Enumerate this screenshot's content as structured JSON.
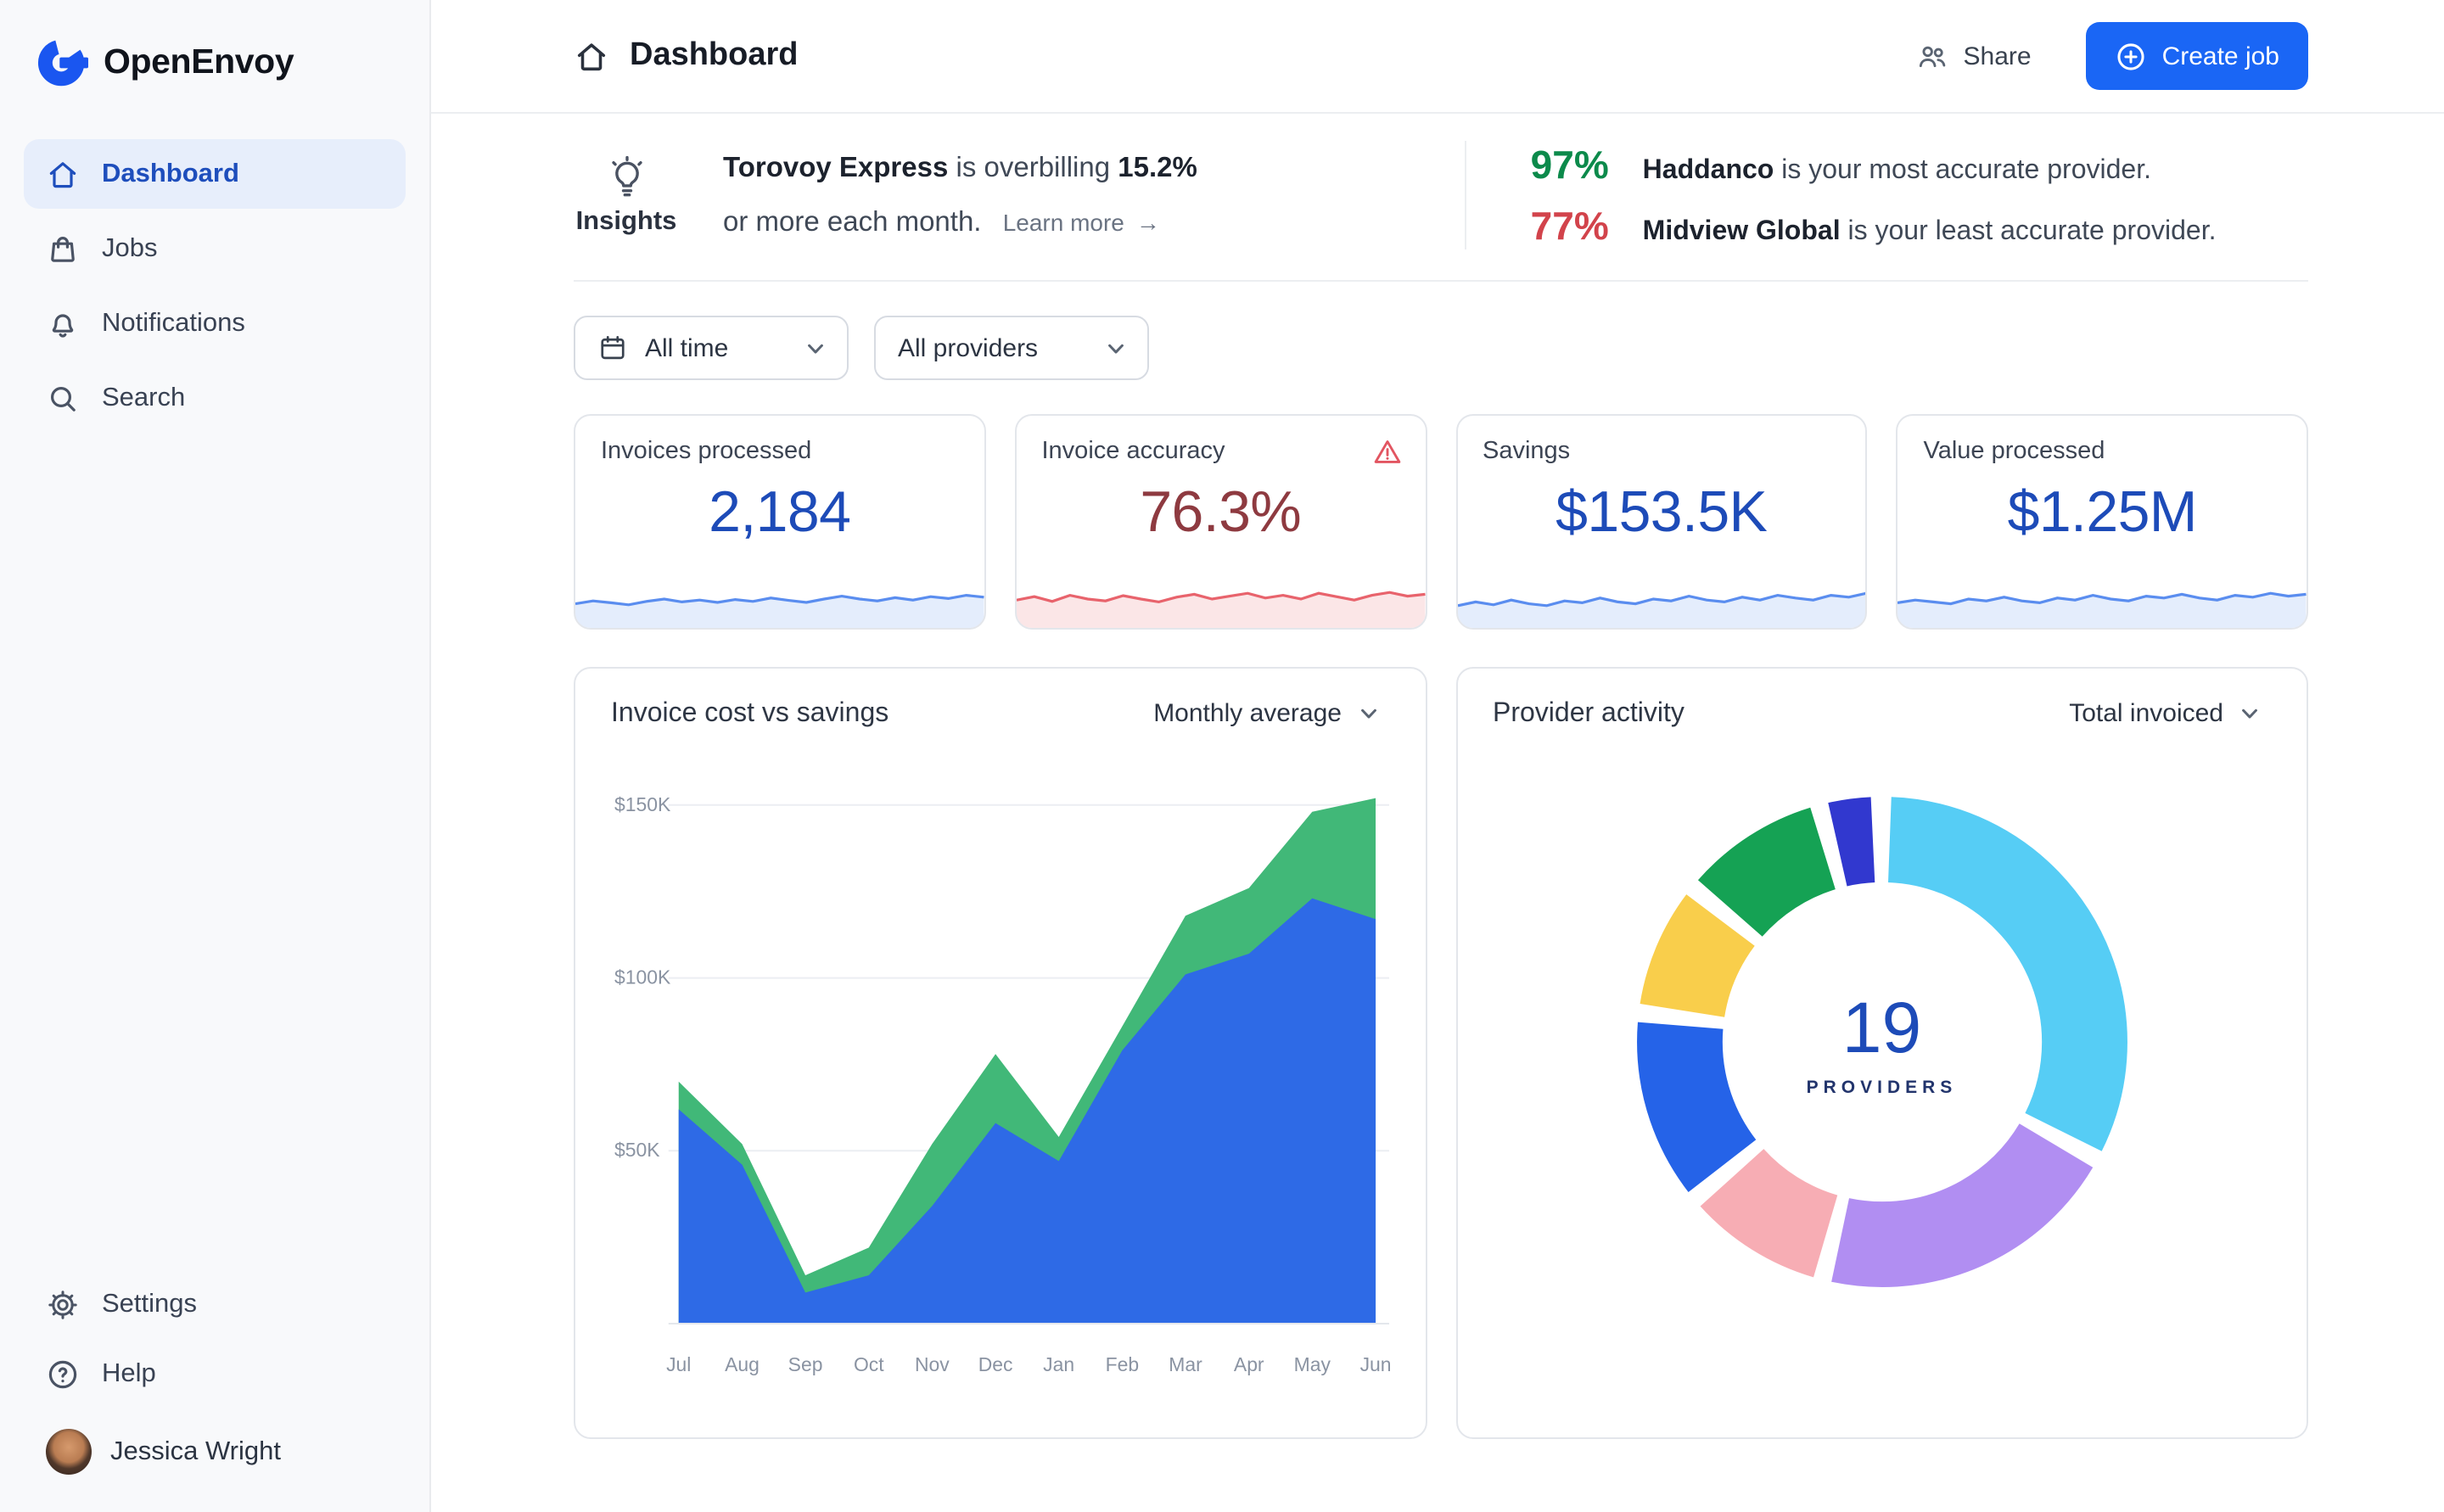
{
  "brand": {
    "bold": "Open",
    "rest": "Envoy"
  },
  "sidebar": {
    "items": [
      {
        "label": "Dashboard",
        "active": true
      },
      {
        "label": "Jobs"
      },
      {
        "label": "Notifications"
      },
      {
        "label": "Search"
      }
    ],
    "footer": [
      {
        "label": "Settings"
      },
      {
        "label": "Help"
      }
    ],
    "user": {
      "name": "Jessica Wright"
    }
  },
  "header": {
    "title": "Dashboard",
    "share": "Share",
    "create_job": "Create job"
  },
  "insights": {
    "title": "Insights",
    "lead_bold": "Torovoy Express",
    "lead_mid": " is overbilling ",
    "lead_pct": "15.2%",
    "line2": "or more each month.",
    "learn_more": "Learn more",
    "arrow": "→",
    "best": {
      "pct": "97%",
      "name": "Haddanco",
      "rest": " is your most accurate provider."
    },
    "worst": {
      "pct": "77%",
      "name": "Midview Global",
      "rest": " is your least accurate provider."
    }
  },
  "filters": {
    "time_range": "All time",
    "providers": "All providers"
  },
  "stats": [
    {
      "label": "Invoices processed",
      "value": "2,184",
      "value_color": "#1d4bb8",
      "spark_color": "#5a8def",
      "spark": [
        40,
        46,
        42,
        38,
        45,
        50,
        44,
        48,
        43,
        49,
        45,
        52,
        47,
        43,
        50,
        56,
        50,
        46,
        53,
        48,
        55,
        51,
        58,
        54
      ]
    },
    {
      "label": "Invoice accuracy",
      "value": "76.3%",
      "value_color": "#8e3a40",
      "warning": true,
      "spark_color": "#e8636c",
      "spark": [
        48,
        55,
        45,
        58,
        50,
        46,
        57,
        50,
        44,
        54,
        60,
        50,
        56,
        62,
        52,
        58,
        50,
        62,
        55,
        48,
        58,
        64,
        56,
        60
      ]
    },
    {
      "label": "Savings",
      "value": "$153.5K",
      "value_color": "#1d4bb8",
      "spark_color": "#5a8def",
      "spark": [
        36,
        44,
        38,
        48,
        40,
        36,
        46,
        42,
        52,
        44,
        40,
        50,
        46,
        56,
        48,
        44,
        54,
        48,
        58,
        52,
        48,
        58,
        54,
        62
      ]
    },
    {
      "label": "Value processed",
      "value": "$1.25M",
      "value_color": "#1d4bb8",
      "spark_color": "#5a8def",
      "spark": [
        42,
        48,
        44,
        40,
        50,
        46,
        54,
        46,
        42,
        52,
        48,
        58,
        50,
        46,
        56,
        52,
        60,
        52,
        48,
        58,
        54,
        62,
        56,
        60
      ]
    }
  ],
  "chart_data": [
    {
      "type": "area",
      "title": "Invoice cost vs savings",
      "dropdown": "Monthly average",
      "stacked": true,
      "x": [
        "Jul",
        "Aug",
        "Sep",
        "Oct",
        "Nov",
        "Dec",
        "Jan",
        "Feb",
        "Mar",
        "Apr",
        "May",
        "Jun"
      ],
      "series": [
        {
          "name": "Invoice cost",
          "color": "#2e6ae6",
          "values": [
            62,
            46,
            9,
            14,
            34,
            58,
            47,
            79,
            101,
            107,
            123,
            117
          ]
        },
        {
          "name": "Savings",
          "color": "#41b878",
          "values": [
            8,
            6,
            5,
            8,
            18,
            20,
            7,
            7,
            17,
            19,
            25,
            35
          ]
        }
      ],
      "unit": "K USD",
      "ylim": [
        0,
        160
      ],
      "yticks": [
        {
          "label": "$50K",
          "value": 50
        },
        {
          "label": "$100K",
          "value": 100
        },
        {
          "label": "$150K",
          "value": 150
        }
      ]
    },
    {
      "type": "donut",
      "title": "Provider activity",
      "dropdown": "Total invoiced",
      "center_value": "19",
      "center_label": "PROVIDERS",
      "segments": [
        {
          "name": "provider-share-1",
          "color": "#56cdf5",
          "value": 33
        },
        {
          "name": "provider-share-2",
          "color": "#b18ef2",
          "value": 21
        },
        {
          "name": "provider-share-3",
          "color": "#f7adb4",
          "value": 10
        },
        {
          "name": "provider-share-4",
          "color": "#2563e8",
          "value": 13
        },
        {
          "name": "provider-share-5",
          "color": "#f9ce4b",
          "value": 9
        },
        {
          "name": "provider-share-6",
          "color": "#15a254",
          "value": 10
        },
        {
          "name": "provider-share-7",
          "color": "#3138cf",
          "value": 4
        }
      ]
    }
  ],
  "colors": {
    "accent": "#1a66f5",
    "positive": "#0c8a4b",
    "negative": "#d2434b",
    "value_blue": "#1d4bb8",
    "value_maroon": "#8e3a40"
  }
}
